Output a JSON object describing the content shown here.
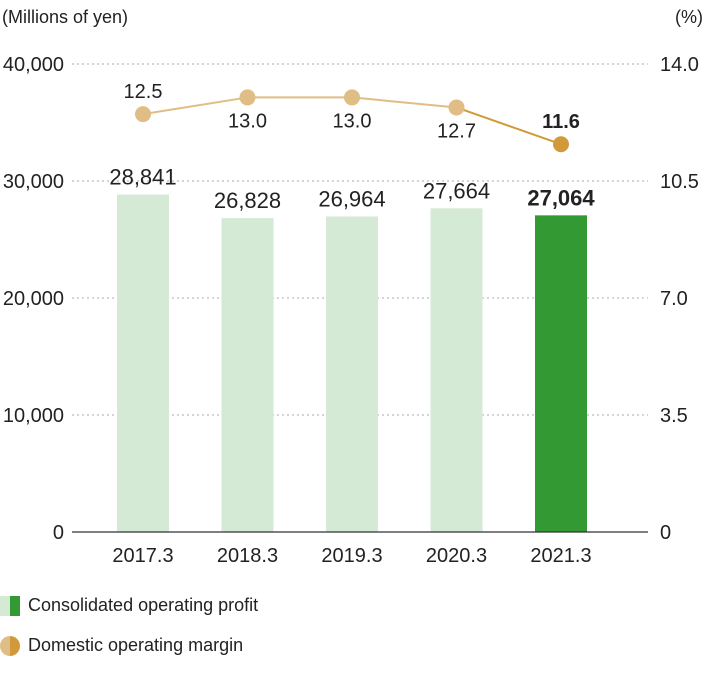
{
  "chart_data": {
    "type": "bar",
    "categories": [
      "2017.3",
      "2018.3",
      "2019.3",
      "2020.3",
      "2021.3"
    ],
    "y_unit_left": "(Millions of yen)",
    "y_unit_right": "(%)",
    "ylim_left": [
      0,
      40000
    ],
    "yticks_left": [
      "0",
      "10,000",
      "20,000",
      "30,000",
      "40,000"
    ],
    "ylim_right": [
      0,
      14.0
    ],
    "yticks_right": [
      "0",
      "3.5",
      "7.0",
      "10.5",
      "14.0"
    ],
    "grid": true,
    "series": [
      {
        "name": "Consolidated operating profit",
        "kind": "bar",
        "axis": "left",
        "values": [
          28841,
          26828,
          26964,
          27664,
          27064
        ],
        "labels": [
          "28,841",
          "26,828",
          "26,964",
          "27,664",
          "27,064"
        ]
      },
      {
        "name": "Domestic operating margin",
        "kind": "line",
        "axis": "right",
        "values": [
          12.5,
          13.0,
          13.0,
          12.7,
          11.6
        ],
        "labels": [
          "12.5",
          "13.0",
          "13.0",
          "12.7",
          "11.6"
        ]
      }
    ],
    "highlight_index": 4,
    "legend_position": "bottom-left"
  },
  "legend": [
    {
      "label": "Consolidated operating profit",
      "icon": "bar-swatch-icon"
    },
    {
      "label": "Domestic operating margin",
      "icon": "line-marker-icon"
    }
  ],
  "colors": {
    "bar": "#d5ead5",
    "bar_highlight": "#339933",
    "line": "#e0bd84",
    "line_highlight": "#d09a3a",
    "grid": "#aaaaaa",
    "axis": "#333333"
  }
}
